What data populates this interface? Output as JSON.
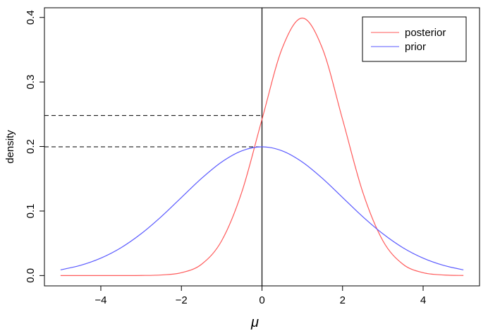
{
  "chart_data": {
    "type": "line",
    "x": [
      -5,
      -4.5,
      -4,
      -3.5,
      -3,
      -2.5,
      -2,
      -1.5,
      -1,
      -0.5,
      0,
      0.5,
      1,
      1.5,
      2,
      2.5,
      3,
      3.5,
      4,
      4.5,
      5
    ],
    "series": [
      {
        "name": "posterior",
        "color": "#ff5a5a",
        "values": [
          0,
          0,
          0,
          0,
          0.0001,
          0.0009,
          0.0044,
          0.0175,
          0.054,
          0.1295,
          0.242,
          0.352,
          0.399,
          0.352,
          0.242,
          0.1295,
          0.054,
          0.0175,
          0.0044,
          0.0009,
          0.0001
        ]
      },
      {
        "name": "prior",
        "color": "#5a5aff",
        "values": [
          0.0088,
          0.0159,
          0.027,
          0.0431,
          0.0648,
          0.0913,
          0.121,
          0.1506,
          0.176,
          0.1933,
          0.1995,
          0.1933,
          0.176,
          0.1506,
          0.121,
          0.0913,
          0.0648,
          0.0431,
          0.027,
          0.0159,
          0.0088
        ]
      }
    ],
    "xlim": [
      -5.4,
      5.4
    ],
    "ylim": [
      -0.016,
      0.415
    ],
    "xticks": [
      {
        "value": -4,
        "label": "−4"
      },
      {
        "value": -2,
        "label": "−2"
      },
      0,
      2,
      4
    ],
    "yticks": [
      {
        "value": 0,
        "label": "0.0"
      },
      0.1,
      0.2,
      0.3,
      0.4
    ],
    "xlabel": "μ",
    "ylabel": "density",
    "vline": 0,
    "hlines": [
      0.248,
      0.1995
    ],
    "legend": "topright",
    "grid": false
  }
}
